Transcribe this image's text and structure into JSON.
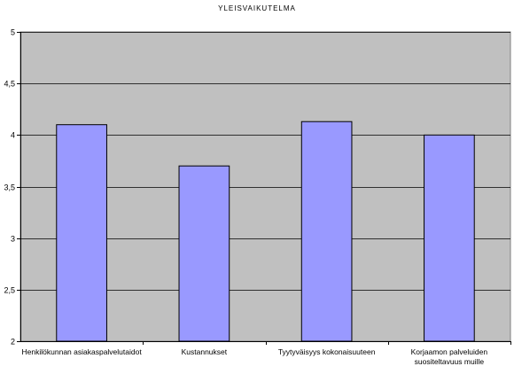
{
  "chart_data": {
    "type": "bar",
    "title": "YLEISVAIKUTELMA",
    "xlabel": "",
    "ylabel": "",
    "ylim": [
      2,
      5
    ],
    "yticks": [
      "2",
      "2,5",
      "3",
      "3,5",
      "4",
      "4,5",
      "5"
    ],
    "categories": [
      [
        "Henkilökunnan asiakaspalvelutaidot"
      ],
      [
        "Kustannukset"
      ],
      [
        "Tyytyväisyys kokonaisuuteen"
      ],
      [
        "Korjaamon palveluiden",
        "suositeltavuus muille"
      ]
    ],
    "values": [
      4.1,
      3.7,
      4.13,
      4.0
    ],
    "grid": true,
    "legend": "none",
    "colors": {
      "plot_background": "#C0C0C0",
      "bar_fill": "#9999FF",
      "bar_stroke": "#000000",
      "grid": "#000000"
    }
  }
}
